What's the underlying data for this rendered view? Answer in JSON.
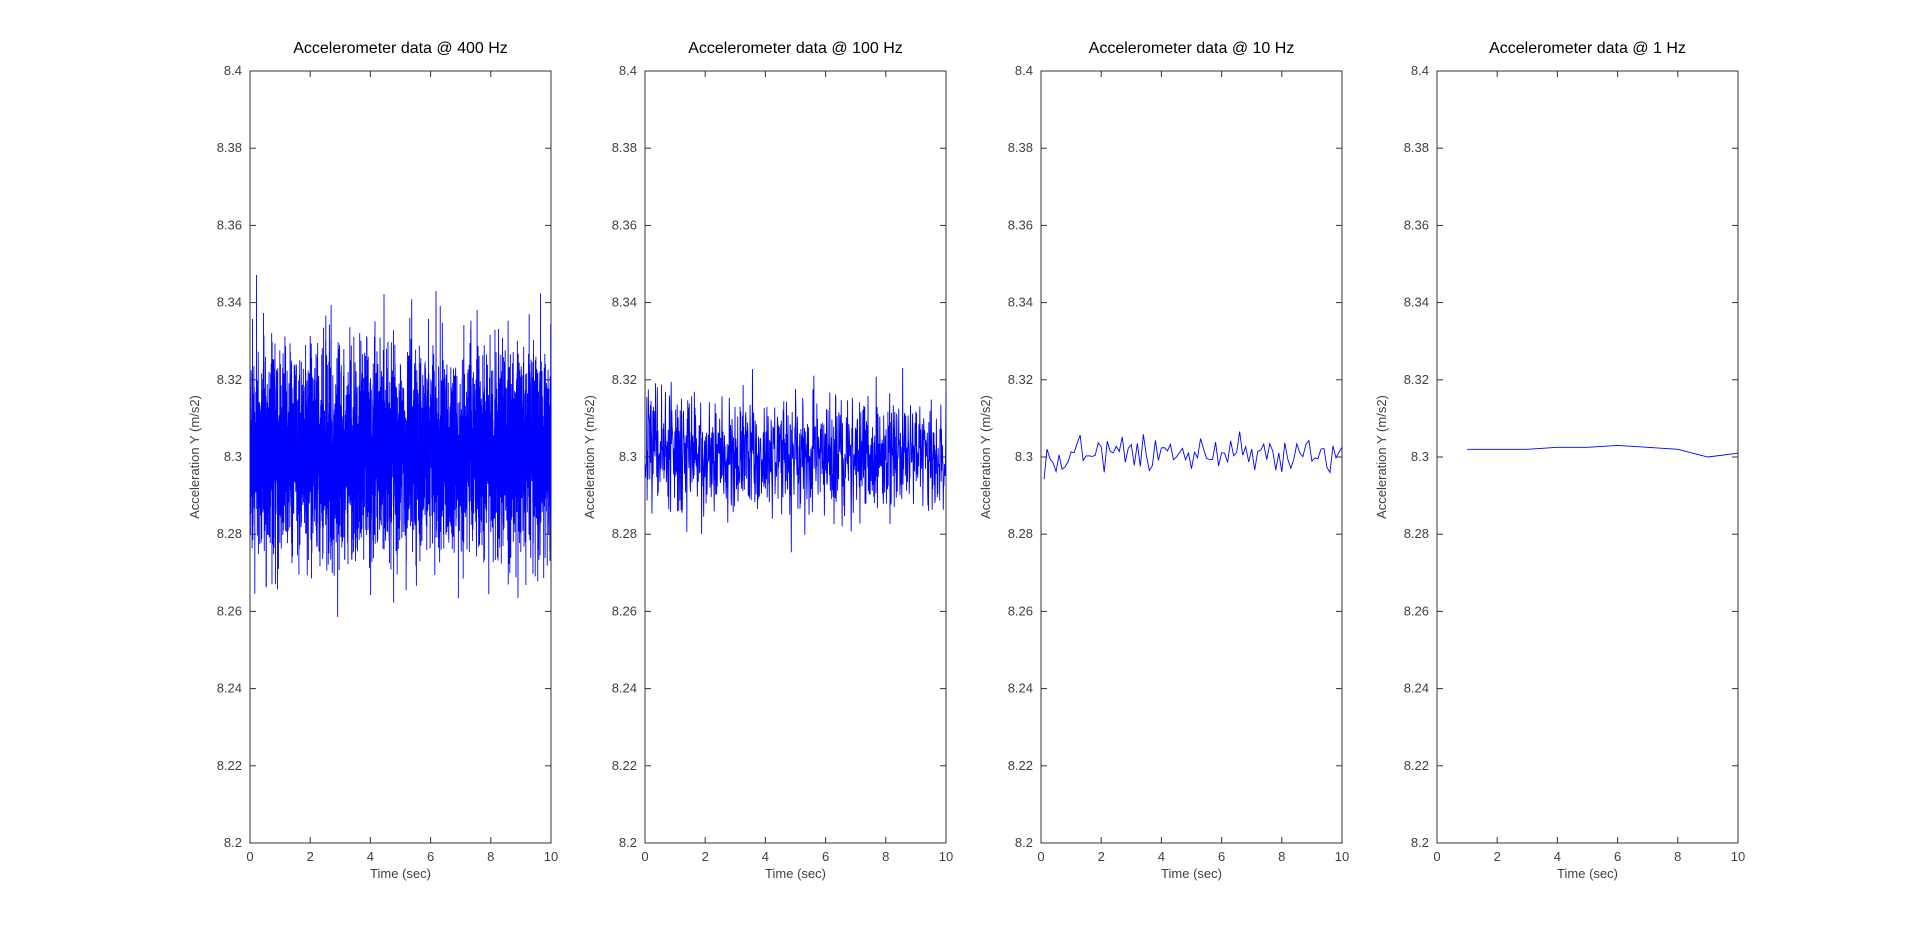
{
  "figure": {
    "background": "#ffffff",
    "axis_color": "#333333",
    "tick_label_color": "#404040",
    "title_color": "#000000"
  },
  "chart_data": [
    {
      "type": "line",
      "title": "Accelerometer data @ 400 Hz",
      "xlabel": "Time (sec)",
      "ylabel": "Acceleration Y (m/s2)",
      "xlim": [
        0,
        10
      ],
      "ylim": [
        8.2,
        8.4
      ],
      "xticks": [
        0,
        2,
        4,
        6,
        8,
        10
      ],
      "yticks": [
        8.2,
        8.22,
        8.24,
        8.26,
        8.28,
        8.3,
        8.32,
        8.34,
        8.36,
        8.38,
        8.4
      ],
      "grid": false,
      "line_color": "#0000ff",
      "series": {
        "name": "Acceleration Y",
        "sample_rate_hz": 400,
        "duration_sec": 10,
        "mean": 8.301,
        "noise_std": 0.013,
        "seed": 42
      }
    },
    {
      "type": "line",
      "title": "Accelerometer data @ 100 Hz",
      "xlabel": "Time (sec)",
      "ylabel": "Acceleration Y (m/s2)",
      "xlim": [
        0,
        10
      ],
      "ylim": [
        8.2,
        8.4
      ],
      "xticks": [
        0,
        2,
        4,
        6,
        8,
        10
      ],
      "yticks": [
        8.2,
        8.22,
        8.24,
        8.26,
        8.28,
        8.3,
        8.32,
        8.34,
        8.36,
        8.38,
        8.4
      ],
      "grid": false,
      "line_color": "#0000ff",
      "series": {
        "name": "Acceleration Y",
        "sample_rate_hz": 100,
        "duration_sec": 10,
        "mean": 8.301,
        "noise_std": 0.0075,
        "seed": 7
      }
    },
    {
      "type": "line",
      "title": "Accelerometer data @ 10 Hz",
      "xlabel": "Time (sec)",
      "ylabel": "Acceleration Y (m/s2)",
      "xlim": [
        0,
        10
      ],
      "ylim": [
        8.2,
        8.4
      ],
      "xticks": [
        0,
        2,
        4,
        6,
        8,
        10
      ],
      "yticks": [
        8.2,
        8.22,
        8.24,
        8.26,
        8.28,
        8.3,
        8.32,
        8.34,
        8.36,
        8.38,
        8.4
      ],
      "grid": false,
      "line_color": "#0000ff",
      "series": {
        "name": "Acceleration Y",
        "sample_rate_hz": 10,
        "duration_sec": 10,
        "mean": 8.301,
        "noise_std": 0.0025,
        "seed": 13
      }
    },
    {
      "type": "line",
      "title": "Accelerometer data @ 1 Hz",
      "xlabel": "Time (sec)",
      "ylabel": "Acceleration Y (m/s2)",
      "xlim": [
        0,
        10
      ],
      "ylim": [
        8.2,
        8.4
      ],
      "xticks": [
        0,
        2,
        4,
        6,
        8,
        10
      ],
      "yticks": [
        8.2,
        8.22,
        8.24,
        8.26,
        8.28,
        8.3,
        8.32,
        8.34,
        8.36,
        8.38,
        8.4
      ],
      "grid": false,
      "line_color": "#0000ff",
      "series": {
        "name": "Acceleration Y",
        "sample_rate_hz": 1,
        "duration_sec": 10,
        "x": [
          1,
          2,
          3,
          4,
          5,
          6,
          7,
          8,
          9,
          10
        ],
        "values": [
          8.302,
          8.302,
          8.302,
          8.3025,
          8.3025,
          8.303,
          8.3025,
          8.302,
          8.3,
          8.301
        ]
      }
    }
  ]
}
